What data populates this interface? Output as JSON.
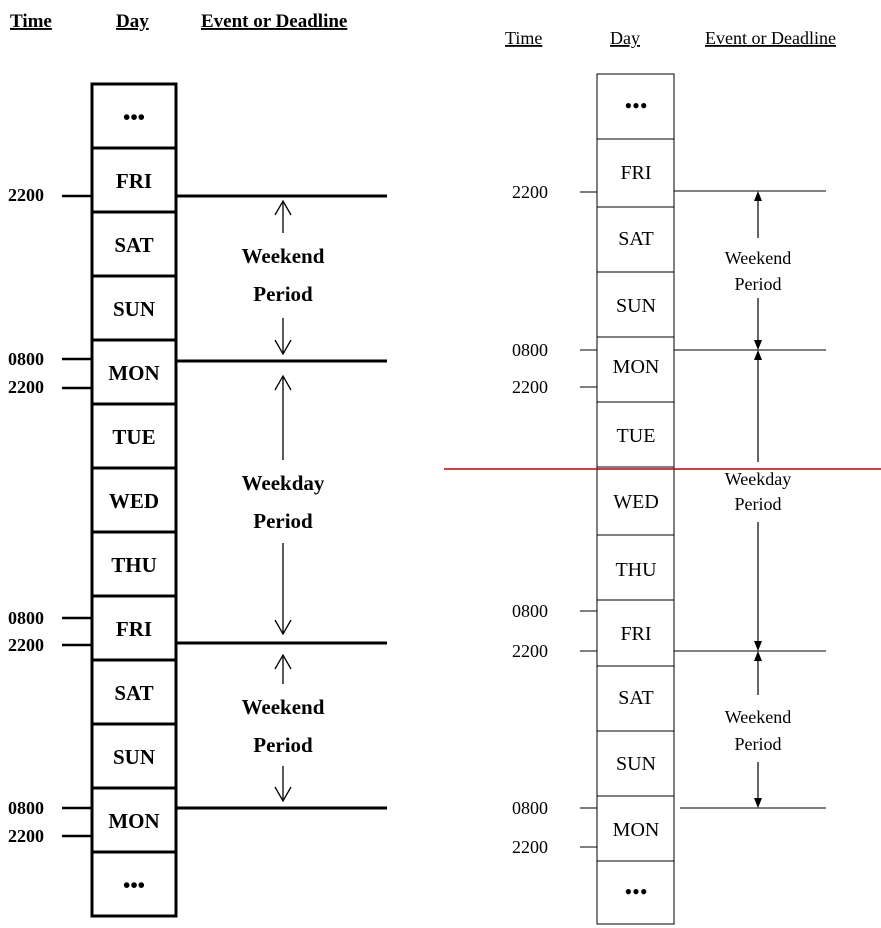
{
  "headers": {
    "time": "Time",
    "day": "Day",
    "event": "Event or Deadline"
  },
  "left_diagram": {
    "days": [
      "•••",
      "FRI",
      "SAT",
      "SUN",
      "MON",
      "TUE",
      "WED",
      "THU",
      "FRI",
      "SAT",
      "SUN",
      "MON",
      "•••"
    ],
    "time_labels": [
      "2200",
      "0800",
      "2200",
      "0800",
      "2200",
      "0800",
      "2200"
    ],
    "periods": [
      {
        "line1": "Weekend",
        "line2": "Period"
      },
      {
        "line1": "Weekday",
        "line2": "Period"
      },
      {
        "line1": "Weekend",
        "line2": "Period"
      }
    ]
  },
  "right_diagram": {
    "days": [
      "•••",
      "FRI",
      "SAT",
      "SUN",
      "MON",
      "TUE",
      "WED",
      "THU",
      "FRI",
      "SAT",
      "SUN",
      "MON",
      "•••"
    ],
    "time_labels": [
      "2200",
      "0800",
      "2200",
      "0800",
      "2200",
      "0800",
      "2200"
    ],
    "periods": [
      {
        "line1": "Weekend",
        "line2": "Period"
      },
      {
        "line1": "Weekday",
        "line2": "Period"
      },
      {
        "line1": "Weekend",
        "line2": "Period"
      }
    ]
  },
  "colors": {
    "ink": "#000000",
    "page_break": "#c00000",
    "background": "#ffffff"
  }
}
